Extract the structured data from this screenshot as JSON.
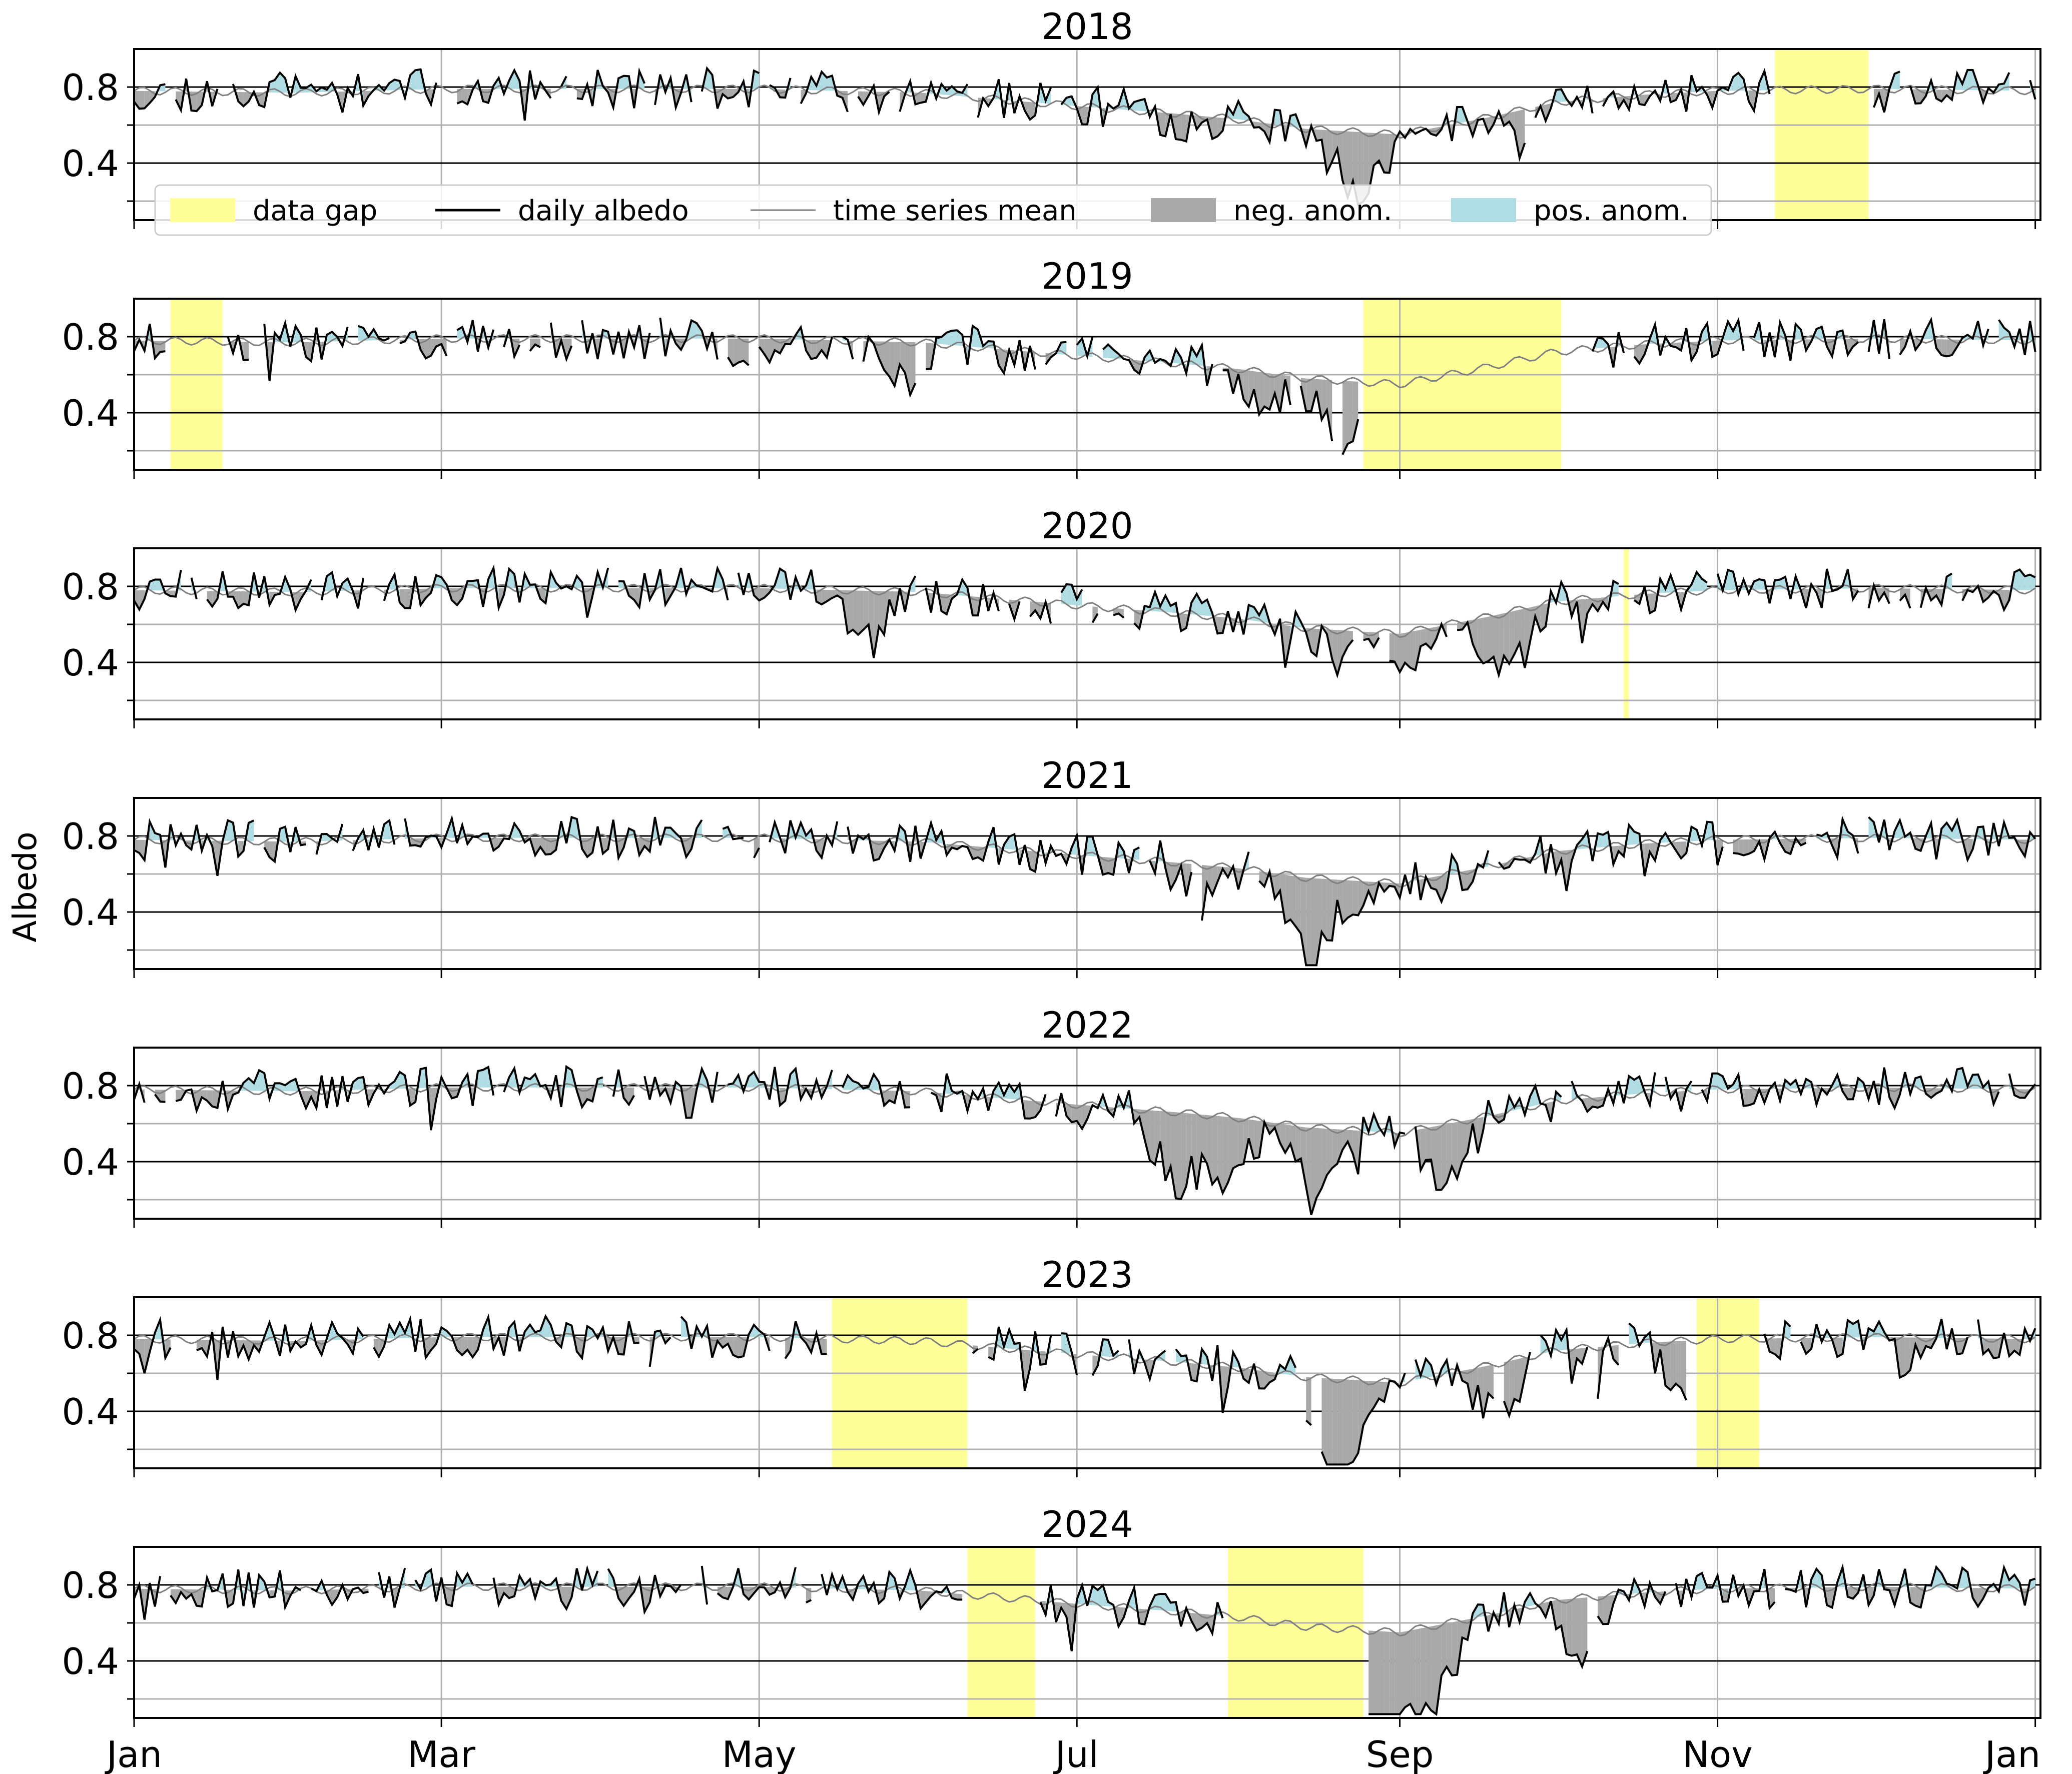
{
  "chart_data": {
    "type": "line",
    "ylabel": "Albedo",
    "ylim": [
      0.1,
      1.0
    ],
    "yticks": [
      0.4,
      0.8
    ],
    "xlim_day": [
      0,
      366
    ],
    "month_ticks": [
      {
        "label": "Jan",
        "day": 0
      },
      {
        "label": "Mar",
        "day": 59
      },
      {
        "label": "May",
        "day": 120
      },
      {
        "label": "Jul",
        "day": 181
      },
      {
        "label": "Sep",
        "day": 243
      },
      {
        "label": "Nov",
        "day": 304
      },
      {
        "label": "Jan",
        "day": 365
      }
    ],
    "colors": {
      "data_gap": "#ffff99",
      "daily_albedo": "#000000",
      "time_series_mean": "#808080",
      "neg_anom": "#a9a9a9",
      "pos_anom": "#b0dde4",
      "grid": "#b0b0b0"
    },
    "legend": {
      "placement": "bottom-left of first panel",
      "entries": [
        {
          "label": "data gap",
          "key": "data_gap"
        },
        {
          "label": "daily albedo",
          "key": "daily_albedo"
        },
        {
          "label": "time series mean",
          "key": "time_series_mean"
        },
        {
          "label": "neg. anom.",
          "key": "neg_anom"
        },
        {
          "label": "pos. anom.",
          "key": "pos_anom"
        }
      ]
    },
    "mean_profile_doy": [
      0,
      31,
      59,
      90,
      120,
      151,
      181,
      200,
      212,
      225,
      243,
      260,
      273,
      290,
      304,
      335,
      365
    ],
    "mean_profile_val": [
      0.78,
      0.77,
      0.79,
      0.79,
      0.79,
      0.77,
      0.7,
      0.66,
      0.63,
      0.58,
      0.55,
      0.64,
      0.72,
      0.76,
      0.78,
      0.79,
      0.78
    ],
    "panels": [
      {
        "title": "2018",
        "gaps": [
          [
            315,
            333
          ]
        ],
        "dips": [
          [
            200,
            0.08
          ],
          [
            230,
            0.15
          ],
          [
            237,
            0.3
          ],
          [
            265,
            0.1
          ]
        ],
        "seed": 11
      },
      {
        "title": "2019",
        "gaps": [
          [
            7,
            17
          ],
          [
            236,
            274
          ]
        ],
        "dips": [
          [
            120,
            0.12
          ],
          [
            148,
            0.22
          ],
          [
            218,
            0.18
          ],
          [
            232,
            0.35
          ]
        ],
        "seed": 23
      },
      {
        "title": "2020",
        "gaps": [
          [
            286,
            287
          ]
        ],
        "dips": [
          [
            140,
            0.3
          ],
          [
            232,
            0.18
          ],
          [
            264,
            0.35
          ],
          [
            245,
            0.15
          ]
        ],
        "seed": 37
      },
      {
        "title": "2021",
        "gaps": [],
        "dips": [
          [
            205,
            0.2
          ],
          [
            225,
            0.22
          ],
          [
            226,
            0.25
          ],
          [
            236,
            0.18
          ]
        ],
        "seed": 41
      },
      {
        "title": "2022",
        "gaps": [],
        "dips": [
          [
            200,
            0.4
          ],
          [
            210,
            0.4
          ],
          [
            228,
            0.38
          ],
          [
            252,
            0.35
          ]
        ],
        "seed": 53
      },
      {
        "title": "2023",
        "gaps": [
          [
            134,
            160
          ],
          [
            300,
            312
          ]
        ],
        "dips": [
          [
            230,
            0.4
          ],
          [
            233,
            0.38
          ],
          [
            262,
            0.3
          ],
          [
            298,
            0.25
          ]
        ],
        "seed": 67
      },
      {
        "title": "2024",
        "gaps": [
          [
            160,
            173
          ],
          [
            210,
            236
          ]
        ],
        "dips": [
          [
            237,
            0.45
          ],
          [
            243,
            0.4
          ],
          [
            250,
            0.4
          ],
          [
            278,
            0.3
          ]
        ],
        "seed": 79
      }
    ]
  }
}
